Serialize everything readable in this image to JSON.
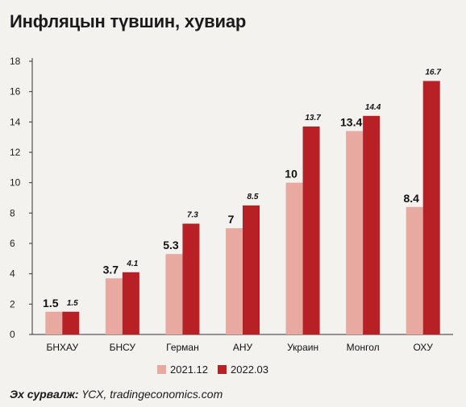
{
  "chart_data": {
    "type": "bar",
    "title": "Инфляцын түвшин, хувиар",
    "categories": [
      "БНХАУ",
      "БНСУ",
      "Герман",
      "АНУ",
      "Украин",
      "Монгол",
      "ОХУ"
    ],
    "series": [
      {
        "name": "2021.12",
        "values": [
          1.5,
          3.7,
          5.3,
          7,
          10,
          13.4,
          8.4
        ],
        "labels": [
          "1.5",
          "3.7",
          "5.3",
          "7",
          "10",
          "13.4",
          "8.4"
        ],
        "color": "#e8a9a0"
      },
      {
        "name": "2022.03",
        "values": [
          1.5,
          4.1,
          7.3,
          8.5,
          13.7,
          14.4,
          16.7
        ],
        "labels": [
          "1.5",
          "4.1",
          "7.3",
          "8.5",
          "13.7",
          "14.4",
          "16.7"
        ],
        "color": "#b72025"
      }
    ],
    "yticks": [
      "0",
      "2",
      "4",
      "6",
      "8",
      "10",
      "12",
      "14",
      "16",
      "18"
    ],
    "ylim": [
      0,
      18
    ],
    "grid": false,
    "legend_position": "bottom"
  },
  "source": {
    "label": "Эх сурвалж:",
    "text": "ҮСХ, tradingeconomics.com"
  }
}
